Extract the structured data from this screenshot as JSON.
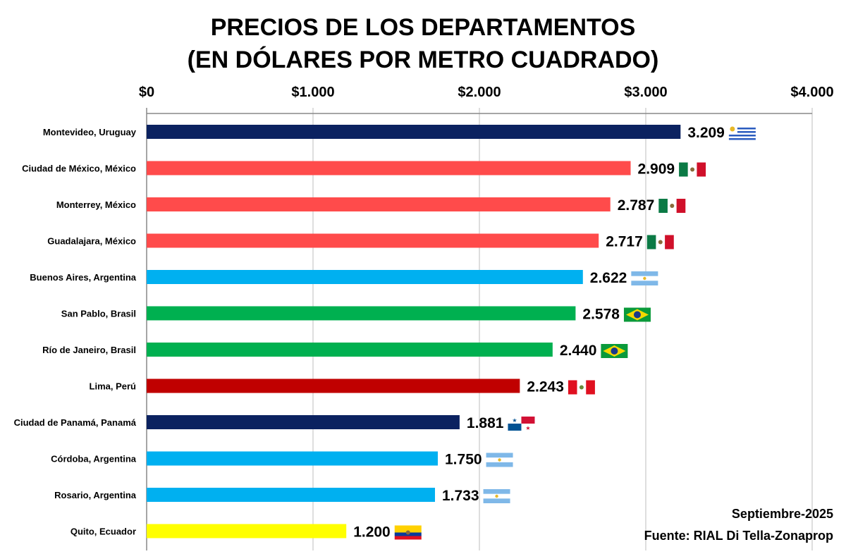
{
  "chart_data": {
    "type": "bar",
    "orientation": "horizontal",
    "title": "PRECIOS DE LOS DEPARTAMENTOS",
    "subtitle": "(EN DÓLARES POR METRO CUADRADO)",
    "xlim": [
      0,
      4000
    ],
    "x_ticks": [
      0,
      1000,
      2000,
      3000,
      4000
    ],
    "x_tick_labels": [
      "$0",
      "$1.000",
      "$2.000",
      "$3.000",
      "$4.000"
    ],
    "x_axis_position": "top",
    "grid": "vertical",
    "categories": [
      "Montevideo, Uruguay",
      "Ciudad de México, México",
      "Monterrey, México",
      "Guadalajara, México",
      "Buenos Aires, Argentina",
      "San Pablo, Brasil",
      "Río de Janeiro, Brasil",
      "Lima, Perú",
      "Ciudad de Panamá, Panamá",
      "Córdoba, Argentina",
      "Rosario, Argentina",
      "Quito, Ecuador"
    ],
    "values": [
      3209,
      2909,
      2787,
      2717,
      2622,
      2578,
      2440,
      2243,
      1881,
      1750,
      1733,
      1200
    ],
    "data_labels": [
      "3.209",
      "2.909",
      "2.787",
      "2.717",
      "2.622",
      "2.578",
      "2.440",
      "2.243",
      "1.881",
      "1.750",
      "1.733",
      "1.200"
    ],
    "bar_colors": [
      "#0b2260",
      "#ff4b4b",
      "#ff4b4b",
      "#ff4b4b",
      "#00b0f0",
      "#00b050",
      "#00b050",
      "#c00000",
      "#0b2260",
      "#00b0f0",
      "#00b0f0",
      "#ffff00"
    ],
    "flags": [
      "uruguay-flag-icon",
      "mexico-flag-icon",
      "mexico-flag-icon",
      "mexico-flag-icon",
      "argentina-flag-icon",
      "brazil-flag-icon",
      "brazil-flag-icon",
      "peru-flag-icon",
      "panama-flag-icon",
      "argentina-flag-icon",
      "argentina-flag-icon",
      "ecuador-flag-icon"
    ],
    "annotations": [
      "Septiembre-2025",
      "Fuente: RIAL Di Tella-Zonaprop"
    ]
  }
}
